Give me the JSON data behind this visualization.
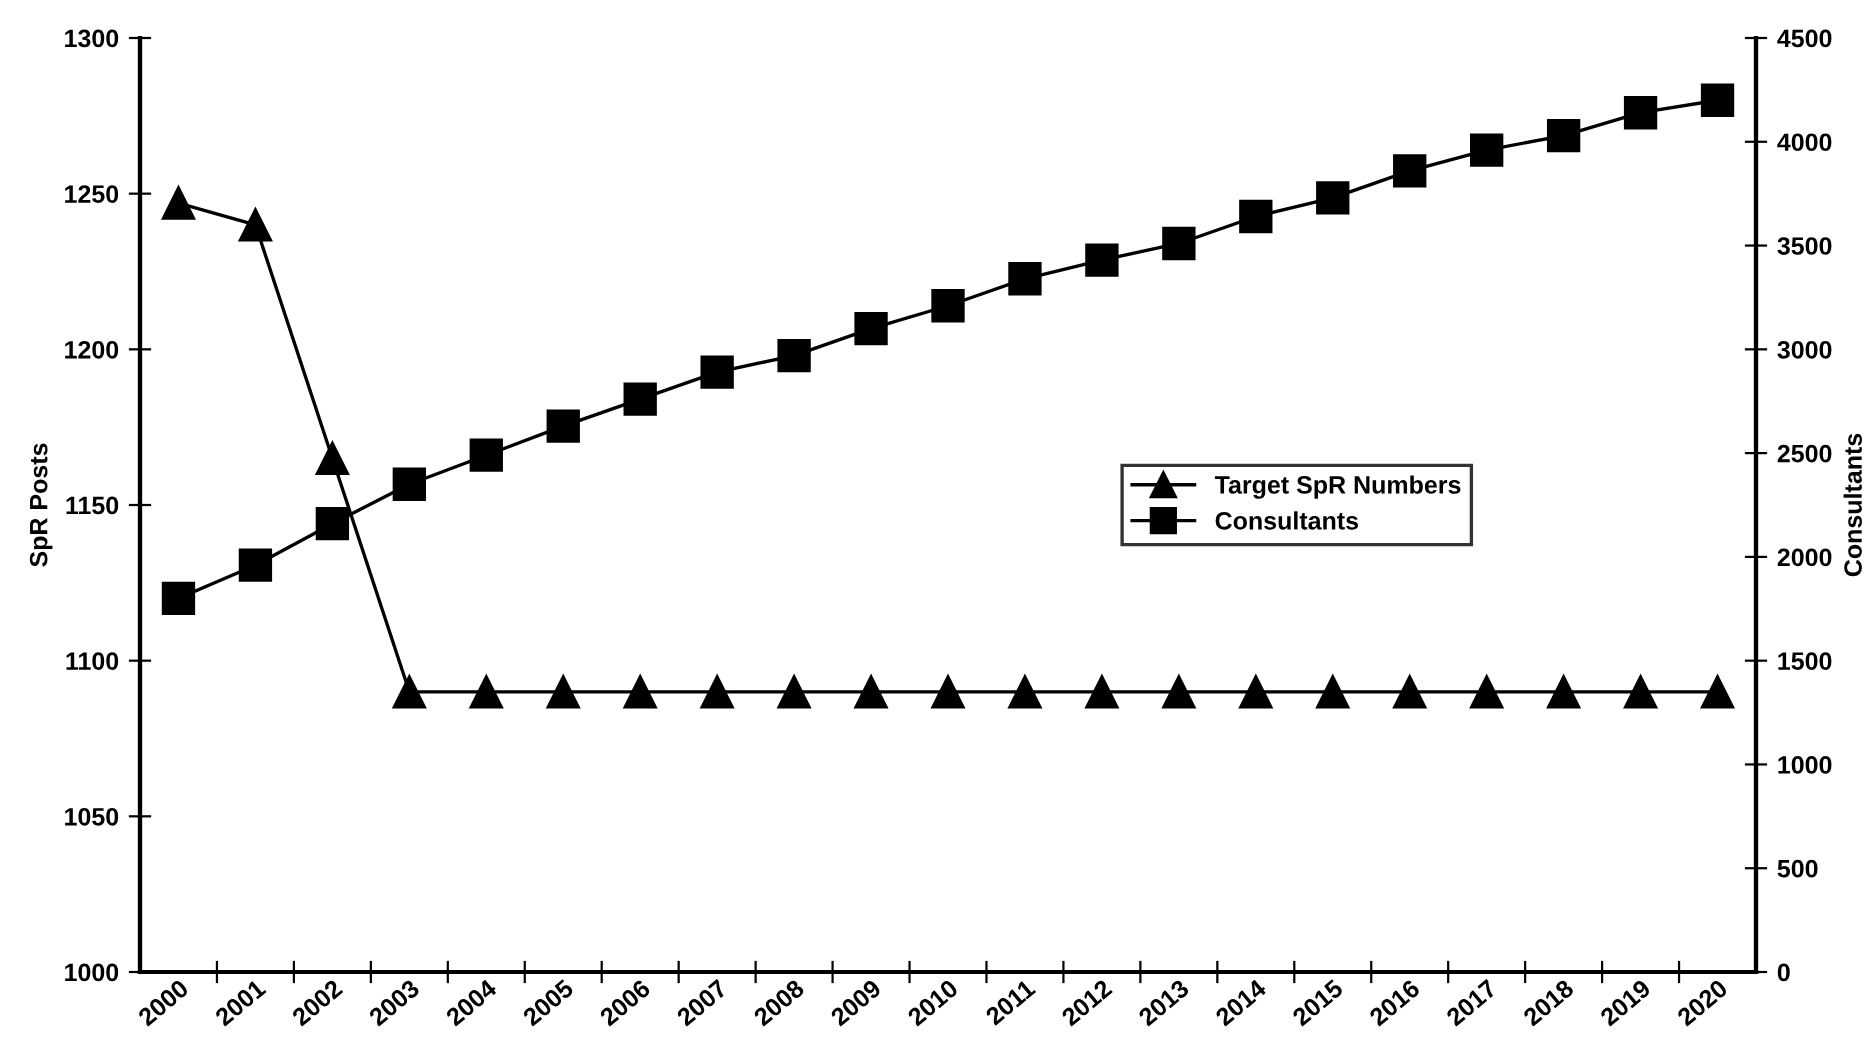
{
  "chart_data": {
    "type": "line",
    "categories": [
      "2000",
      "2001",
      "2002",
      "2003",
      "2004",
      "2005",
      "2006",
      "2007",
      "2008",
      "2009",
      "2010",
      "2011",
      "2012",
      "2013",
      "2014",
      "2015",
      "2016",
      "2017",
      "2018",
      "2019",
      "2020"
    ],
    "ylabel": "SpR Posts",
    "y2label": "Consultants",
    "ylim": [
      1000,
      1300
    ],
    "yticks": [
      1000,
      1050,
      1100,
      1150,
      1200,
      1250,
      1300
    ],
    "y2lim": [
      0,
      4500
    ],
    "y2ticks": [
      0,
      500,
      1000,
      1500,
      2000,
      2500,
      3000,
      3500,
      4000,
      4500
    ],
    "series": [
      {
        "name": "Target SpR Numbers",
        "color": "#000000",
        "marker": "triangle",
        "values": [
          1247,
          1240,
          1165,
          1090,
          1090,
          1090,
          1090,
          1090,
          1090,
          1090,
          1090,
          1090,
          1090,
          1090,
          1090,
          1090,
          1090,
          1090,
          1090,
          1090,
          1090
        ]
      },
      {
        "name": "Consultants",
        "color": "#000000",
        "marker": "square",
        "axis": "y2",
        "values": [
          1800,
          1960,
          2160,
          2350,
          2490,
          2630,
          2760,
          2890,
          2970,
          3100,
          3210,
          3340,
          3430,
          3510,
          3640,
          3730,
          3860,
          3960,
          4030,
          4140,
          4200
        ]
      }
    ],
    "legend": "right",
    "grid": false,
    "line_style": "solid"
  }
}
